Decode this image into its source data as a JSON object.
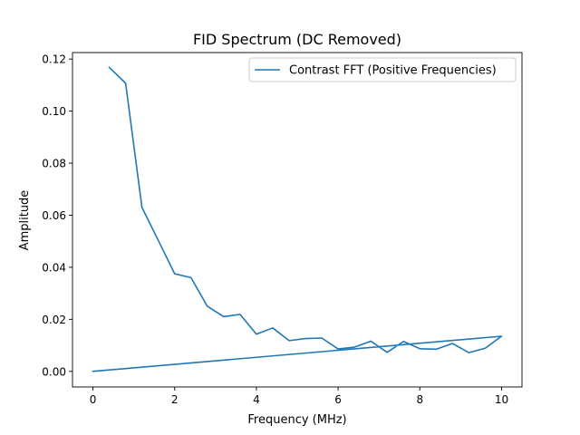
{
  "chart_data": {
    "type": "line",
    "title": "FID Spectrum (DC Removed)",
    "xlabel": "Frequency (MHz)",
    "ylabel": "Amplitude",
    "xlim": [
      -0.5,
      10.5
    ],
    "ylim": [
      -0.006,
      0.1225
    ],
    "xticks": [
      0,
      2,
      4,
      6,
      8,
      10
    ],
    "xtick_labels": [
      "0",
      "2",
      "4",
      "6",
      "8",
      "10"
    ],
    "yticks": [
      0.0,
      0.02,
      0.04,
      0.06,
      0.08,
      0.1,
      0.12
    ],
    "ytick_labels": [
      "0.00",
      "0.02",
      "0.04",
      "0.06",
      "0.08",
      "0.10",
      "0.12"
    ],
    "grid": false,
    "legend_position": "upper right",
    "series": [
      {
        "name": "Contrast FFT (Positive Frequencies)",
        "color": "#1f77b4",
        "x": [
          0.4,
          0.8,
          1.2,
          1.6,
          2.0,
          2.4,
          2.8,
          3.2,
          3.6,
          4.0,
          4.4,
          4.8,
          5.2,
          5.6,
          6.0,
          6.4,
          6.8,
          7.2,
          7.6,
          8.0,
          8.4,
          8.8,
          9.2,
          9.6,
          10.0,
          0.0
        ],
        "y": [
          0.1168,
          0.1107,
          0.063,
          0.0503,
          0.0375,
          0.036,
          0.025,
          0.021,
          0.0219,
          0.0143,
          0.0167,
          0.0118,
          0.0126,
          0.0128,
          0.0086,
          0.0093,
          0.0116,
          0.0073,
          0.0115,
          0.0087,
          0.0085,
          0.0107,
          0.0072,
          0.0089,
          0.0135,
          0.0
        ]
      }
    ]
  }
}
